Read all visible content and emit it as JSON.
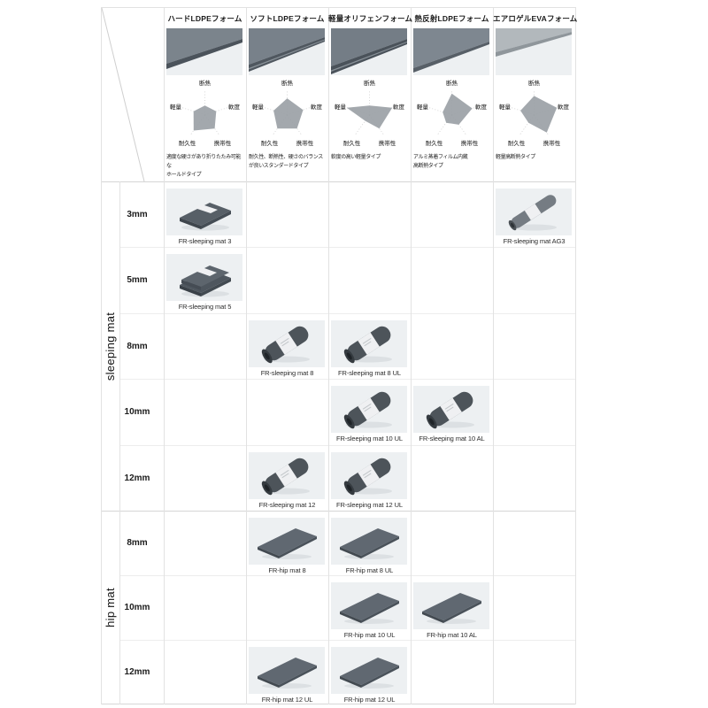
{
  "palette": {
    "background": "#ffffff",
    "grid_line": "#e2e2e2",
    "section_line": "#d6d6d6",
    "row_line": "#ededed",
    "diagonal_line": "#cfcfcf",
    "radar_fill": "#9ba1a6",
    "radar_axis": "#bdbdbd",
    "photo_bg": "#edf0f2",
    "band": "#eff0f2",
    "roll_dark": "#4d545a",
    "shadow": "#dce0e3"
  },
  "matrix": {
    "radar_axes": [
      "断熱",
      "軟度",
      "携帯性",
      "耐久性",
      "軽量"
    ],
    "columns": [
      {
        "name": "ハードLDPEフォーム",
        "desc": "適度な硬さがあり折りたたみ可能な\nホールドタイプ",
        "photo": {
          "face": "#7b848c",
          "edge": "#4b535b"
        }
      },
      {
        "name": "ソフトLDPEフォーム",
        "desc": "耐久性、断熱性、硬さのバランス\nが良いスタンダードタイプ",
        "photo": {
          "face": "#78818a",
          "edge": "#4f575f"
        }
      },
      {
        "name": "軽量オリフェンフォーム",
        "desc": "軟度の高い軽量タイプ",
        "photo": {
          "face": "#747d86",
          "edge": "#4a525a"
        }
      },
      {
        "name": "熱反射LDPEフォーム",
        "desc": "アルミ蒸着フィルム内蔵\n高断熱タイプ",
        "photo": {
          "face": "#7e8790",
          "edge": "#575f67"
        }
      },
      {
        "name": "エアロゲルEVAフォーム",
        "desc": "軽量高断熱タイプ",
        "photo": {
          "face": "#b2b8bc",
          "edge": "#8f969b"
        }
      }
    ],
    "sections": [
      {
        "label": "sleeping mat",
        "rows": [
          {
            "thickness": "3mm",
            "products": [
              {
                "col": 0,
                "label": "FR-sleeping mat 3",
                "shape": "folded"
              },
              {
                "col": 4,
                "label": "FR-sleeping mat AG3",
                "shape": "roll-slim"
              }
            ]
          },
          {
            "thickness": "5mm",
            "products": [
              {
                "col": 0,
                "label": "FR-sleeping mat 5",
                "shape": "folded-thick"
              }
            ]
          },
          {
            "thickness": "8mm",
            "products": [
              {
                "col": 1,
                "label": "FR-sleeping mat 8",
                "shape": "roll"
              },
              {
                "col": 2,
                "label": "FR-sleeping mat 8 UL",
                "shape": "roll"
              }
            ]
          },
          {
            "thickness": "10mm",
            "products": [
              {
                "col": 2,
                "label": "FR-sleeping mat 10 UL",
                "shape": "roll"
              },
              {
                "col": 3,
                "label": "FR-sleeping mat 10 AL",
                "shape": "roll"
              }
            ]
          },
          {
            "thickness": "12mm",
            "products": [
              {
                "col": 1,
                "label": "FR-sleeping mat 12",
                "shape": "roll"
              },
              {
                "col": 2,
                "label": "FR-sleeping mat 12 UL",
                "shape": "roll"
              }
            ]
          }
        ]
      },
      {
        "label": "hip mat",
        "rows": [
          {
            "thickness": "8mm",
            "products": [
              {
                "col": 1,
                "label": "FR-hip mat 8",
                "shape": "sheet"
              },
              {
                "col": 2,
                "label": "FR-hip mat 8 UL",
                "shape": "sheet"
              }
            ]
          },
          {
            "thickness": "10mm",
            "products": [
              {
                "col": 2,
                "label": "FR-hip mat 10 UL",
                "shape": "sheet"
              },
              {
                "col": 3,
                "label": "FR-hip mat 10 AL",
                "shape": "sheet"
              }
            ]
          },
          {
            "thickness": "12mm",
            "products": [
              {
                "col": 1,
                "label": "FR-hip mat 12 UL",
                "shape": "sheet"
              },
              {
                "col": 2,
                "label": "FR-hip mat 12 UL",
                "shape": "sheet"
              }
            ]
          }
        ]
      }
    ]
  },
  "chart_data": [
    {
      "type": "radar",
      "title": "ハードLDPEフォーム",
      "axes": [
        "断熱",
        "軟度",
        "携帯性",
        "耐久性",
        "軽量"
      ],
      "values": [
        2,
        2.5,
        3.5,
        4,
        2.5
      ],
      "scale": [
        0,
        5
      ]
    },
    {
      "type": "radar",
      "title": "ソフトLDPEフォーム",
      "axes": [
        "断熱",
        "軟度",
        "携帯性",
        "耐久性",
        "軽量"
      ],
      "values": [
        3.5,
        3.5,
        3.5,
        3.5,
        3
      ],
      "scale": [
        0,
        5
      ]
    },
    {
      "type": "radar",
      "title": "軽量オリフェンフォーム",
      "axes": [
        "断熱",
        "軟度",
        "携帯性",
        "耐久性",
        "軽量"
      ],
      "values": [
        2,
        5,
        3.5,
        1.5,
        5
      ],
      "scale": [
        0,
        5
      ]
    },
    {
      "type": "radar",
      "title": "熱反射LDPEフォーム",
      "axes": [
        "断熱",
        "軟度",
        "携帯性",
        "耐久性",
        "軽量"
      ],
      "values": [
        4.5,
        4.5,
        2.5,
        2,
        2
      ],
      "scale": [
        0,
        5
      ]
    },
    {
      "type": "radar",
      "title": "エアロゲルEVAフォーム",
      "axes": [
        "断熱",
        "軟度",
        "携帯性",
        "耐久性",
        "軽量"
      ],
      "values": [
        4,
        5,
        4.5,
        2,
        3
      ],
      "scale": [
        0,
        5
      ]
    }
  ]
}
